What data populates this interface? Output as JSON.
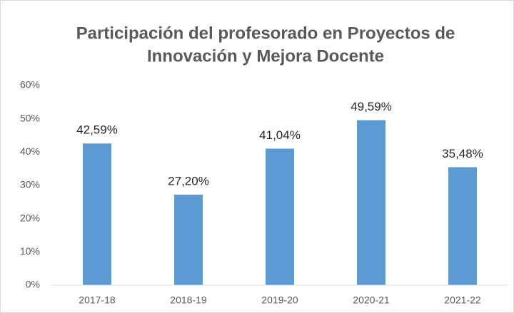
{
  "chart_data": {
    "type": "bar",
    "title": [
      "Participación del profesorado en Proyectos de",
      "Innovación y Mejora Docente"
    ],
    "categories": [
      "2017-18",
      "2018-19",
      "2019-20",
      "2020-21",
      "2021-22"
    ],
    "values": [
      42.59,
      27.2,
      41.04,
      49.59,
      35.48
    ],
    "value_labels": [
      "42,59%",
      "27,20%",
      "41,04%",
      "49,59%",
      "35,48%"
    ],
    "color": "#5b9bd5",
    "ylim": [
      0,
      60
    ],
    "yticks": [
      {
        "value": 0,
        "label": "0%"
      },
      {
        "value": 10,
        "label": "10%"
      },
      {
        "value": 20,
        "label": "20%"
      },
      {
        "value": 30,
        "label": "30%"
      },
      {
        "value": 40,
        "label": "40%"
      },
      {
        "value": 50,
        "label": "50%"
      },
      {
        "value": 60,
        "label": "60%"
      }
    ],
    "grid": false
  }
}
